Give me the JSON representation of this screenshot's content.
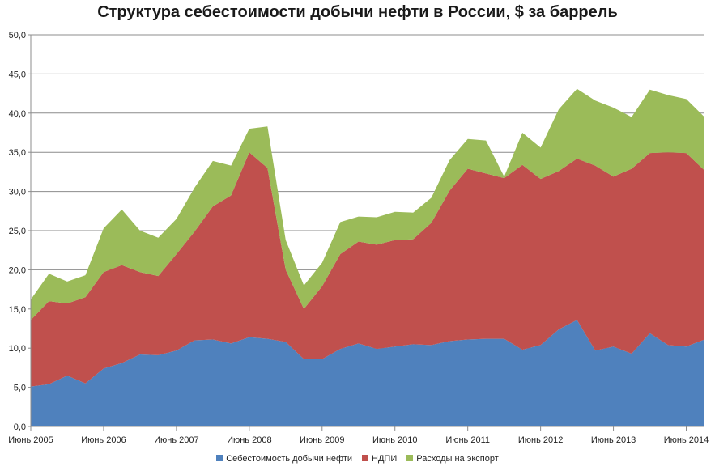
{
  "chart_data": {
    "type": "area",
    "stacked": true,
    "title": "Структура себестоимости добычи нефти в России, $ за баррель",
    "xlabel": "",
    "ylabel": "",
    "ylim": [
      0,
      50
    ],
    "y_ticks": [
      "0,0",
      "5,0",
      "10,0",
      "15,0",
      "20,0",
      "25,0",
      "30,0",
      "35,0",
      "40,0",
      "45,0",
      "50,0"
    ],
    "x_labels": [
      {
        "index": 0,
        "label": "Июнь 2005"
      },
      {
        "index": 4,
        "label": "Июнь 2006"
      },
      {
        "index": 8,
        "label": "Июнь 2007"
      },
      {
        "index": 12,
        "label": "Июнь 2008"
      },
      {
        "index": 16,
        "label": "Июнь 2009"
      },
      {
        "index": 20,
        "label": "Июнь 2010"
      },
      {
        "index": 24,
        "label": "Июнь 2011"
      },
      {
        "index": 28,
        "label": "Июнь 2012"
      },
      {
        "index": 32,
        "label": "Июнь 2013"
      },
      {
        "index": 36,
        "label": "Июнь 2014"
      }
    ],
    "grid": true,
    "legend_position": "bottom",
    "series": [
      {
        "name": "Себестоимость добычи нефти",
        "color": "#4f81bd",
        "values": [
          5.1,
          5.4,
          6.5,
          5.5,
          7.4,
          8.1,
          9.2,
          9.1,
          9.7,
          11.0,
          11.1,
          10.6,
          11.4,
          11.2,
          10.8,
          8.6,
          8.6,
          9.9,
          10.6,
          9.9,
          10.2,
          10.5,
          10.4,
          10.9,
          11.1,
          11.2,
          11.2,
          9.8,
          10.4,
          12.4,
          13.6,
          9.7,
          10.2,
          9.3,
          11.9,
          10.4,
          10.2,
          11.1
        ]
      },
      {
        "name": "НДПИ",
        "color": "#c0504d",
        "values": [
          8.5,
          10.6,
          9.2,
          11.0,
          12.3,
          12.5,
          10.5,
          10.1,
          12.3,
          13.9,
          17.0,
          18.9,
          23.6,
          21.8,
          9.2,
          6.4,
          9.3,
          12.1,
          13.0,
          13.3,
          13.6,
          13.4,
          15.6,
          19.2,
          21.8,
          21.1,
          20.5,
          23.6,
          21.2,
          20.2,
          20.6,
          23.6,
          21.7,
          23.6,
          23.0,
          24.6,
          24.7,
          21.6
        ]
      },
      {
        "name": "Расходы на экспорт",
        "color": "#9bbb59",
        "values": [
          2.6,
          3.5,
          2.8,
          2.8,
          5.6,
          7.1,
          5.3,
          4.9,
          4.5,
          5.6,
          5.8,
          3.8,
          3.0,
          5.3,
          3.8,
          3.0,
          3.0,
          4.1,
          3.2,
          3.5,
          3.6,
          3.4,
          3.2,
          3.9,
          3.8,
          4.2,
          0.2,
          4.1,
          4.0,
          7.9,
          8.9,
          8.3,
          8.8,
          6.6,
          8.1,
          7.3,
          6.9,
          6.8
        ]
      }
    ]
  }
}
